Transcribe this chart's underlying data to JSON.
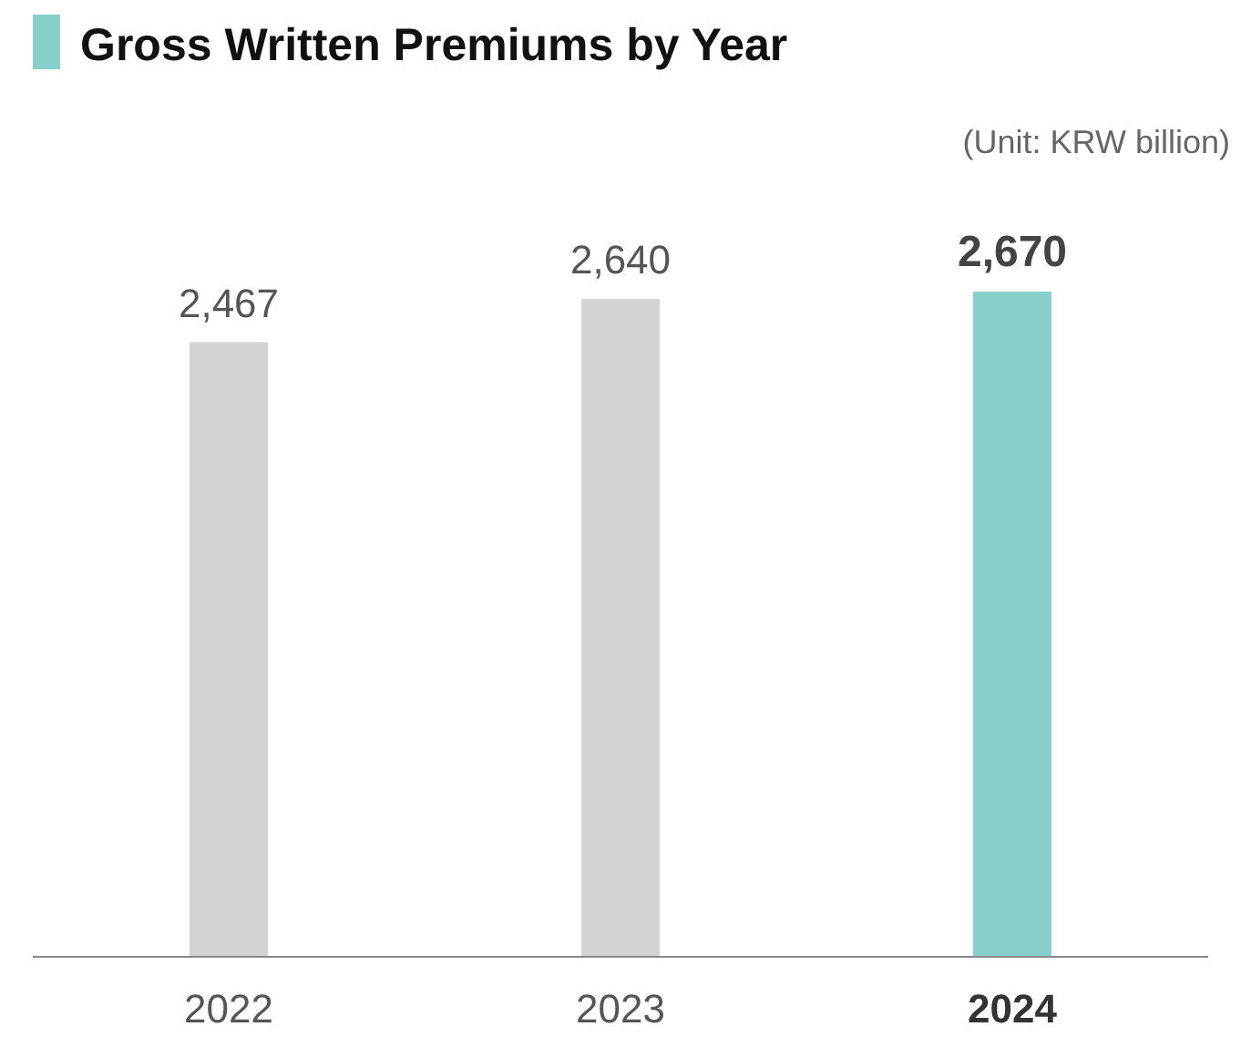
{
  "chart_data": {
    "type": "bar",
    "title": "Gross Written Premiums by Year",
    "annotations": [
      "(Unit: KRW billion)"
    ],
    "categories": [
      "2022",
      "2023",
      "2024"
    ],
    "values": [
      2467,
      2640,
      2670
    ],
    "value_labels": [
      "2,467",
      "2,640",
      "2,670"
    ],
    "colors": [
      "#d3d3d3",
      "#d3d3d3",
      "#88cfcc"
    ],
    "tick_labels": "x"
  }
}
